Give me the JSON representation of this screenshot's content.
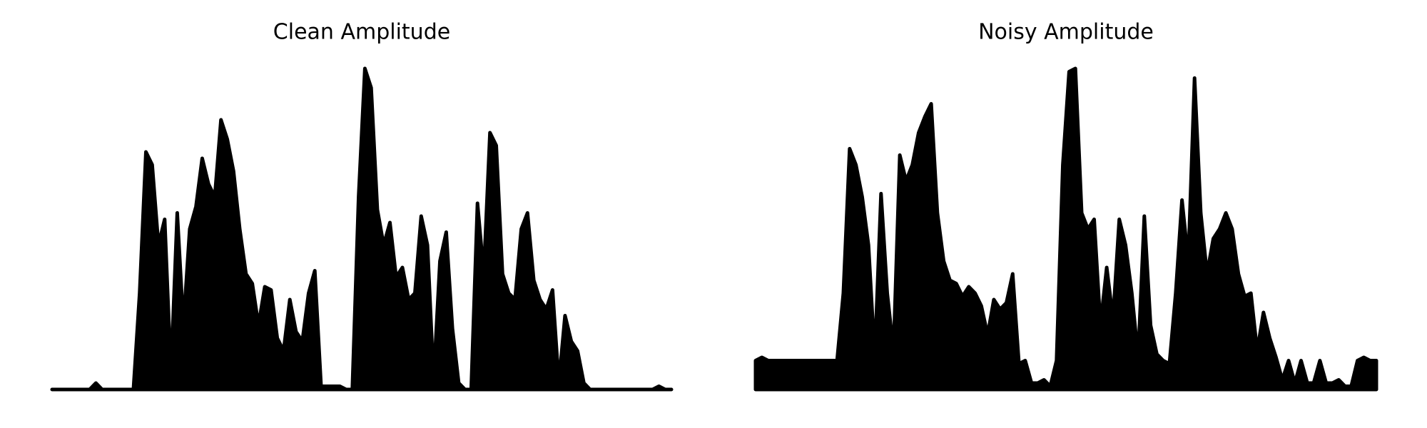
{
  "chart_data": [
    {
      "type": "area",
      "title": "Clean Amplitude",
      "color": "#000000",
      "ylim": [
        0,
        100
      ],
      "values": [
        0,
        0,
        0,
        0,
        0,
        0,
        0,
        2,
        0,
        0,
        0,
        0,
        0,
        0,
        30,
        74,
        70,
        45,
        53,
        5,
        55,
        20,
        50,
        57,
        72,
        64,
        60,
        84,
        78,
        68,
        50,
        36,
        33,
        20,
        32,
        31,
        16,
        12,
        28,
        18,
        15,
        30,
        37,
        1,
        1,
        1,
        1,
        0,
        0,
        60,
        100,
        94,
        56,
        45,
        52,
        35,
        38,
        28,
        30,
        54,
        45,
        3,
        40,
        49,
        19,
        2,
        0,
        0,
        58,
        36,
        80,
        76,
        36,
        30,
        28,
        50,
        55,
        34,
        28,
        25,
        31,
        2,
        23,
        15,
        12,
        2,
        0,
        0,
        0,
        0,
        0,
        0,
        0,
        0,
        0,
        0,
        0,
        1,
        0,
        0
      ]
    },
    {
      "type": "area",
      "title": "Noisy Amplitude",
      "color": "#000000",
      "ylim": [
        0,
        100
      ],
      "values": [
        9,
        10,
        9,
        9,
        9,
        9,
        9,
        9,
        9,
        9,
        9,
        9,
        9,
        9,
        30,
        75,
        70,
        60,
        45,
        10,
        61,
        30,
        12,
        73,
        65,
        70,
        80,
        85,
        89,
        55,
        40,
        34,
        33,
        29,
        32,
        30,
        26,
        17,
        28,
        25,
        27,
        36,
        8,
        9,
        2,
        2,
        3,
        1,
        9,
        70,
        99,
        100,
        55,
        50,
        53,
        20,
        38,
        22,
        53,
        45,
        30,
        10,
        54,
        20,
        11,
        9,
        8,
        30,
        59,
        40,
        97,
        55,
        36,
        47,
        50,
        55,
        50,
        36,
        29,
        30,
        12,
        24,
        16,
        10,
        3,
        9,
        2,
        9,
        2,
        2,
        9,
        2,
        2,
        3,
        1,
        1,
        9,
        10,
        9,
        9
      ]
    }
  ]
}
